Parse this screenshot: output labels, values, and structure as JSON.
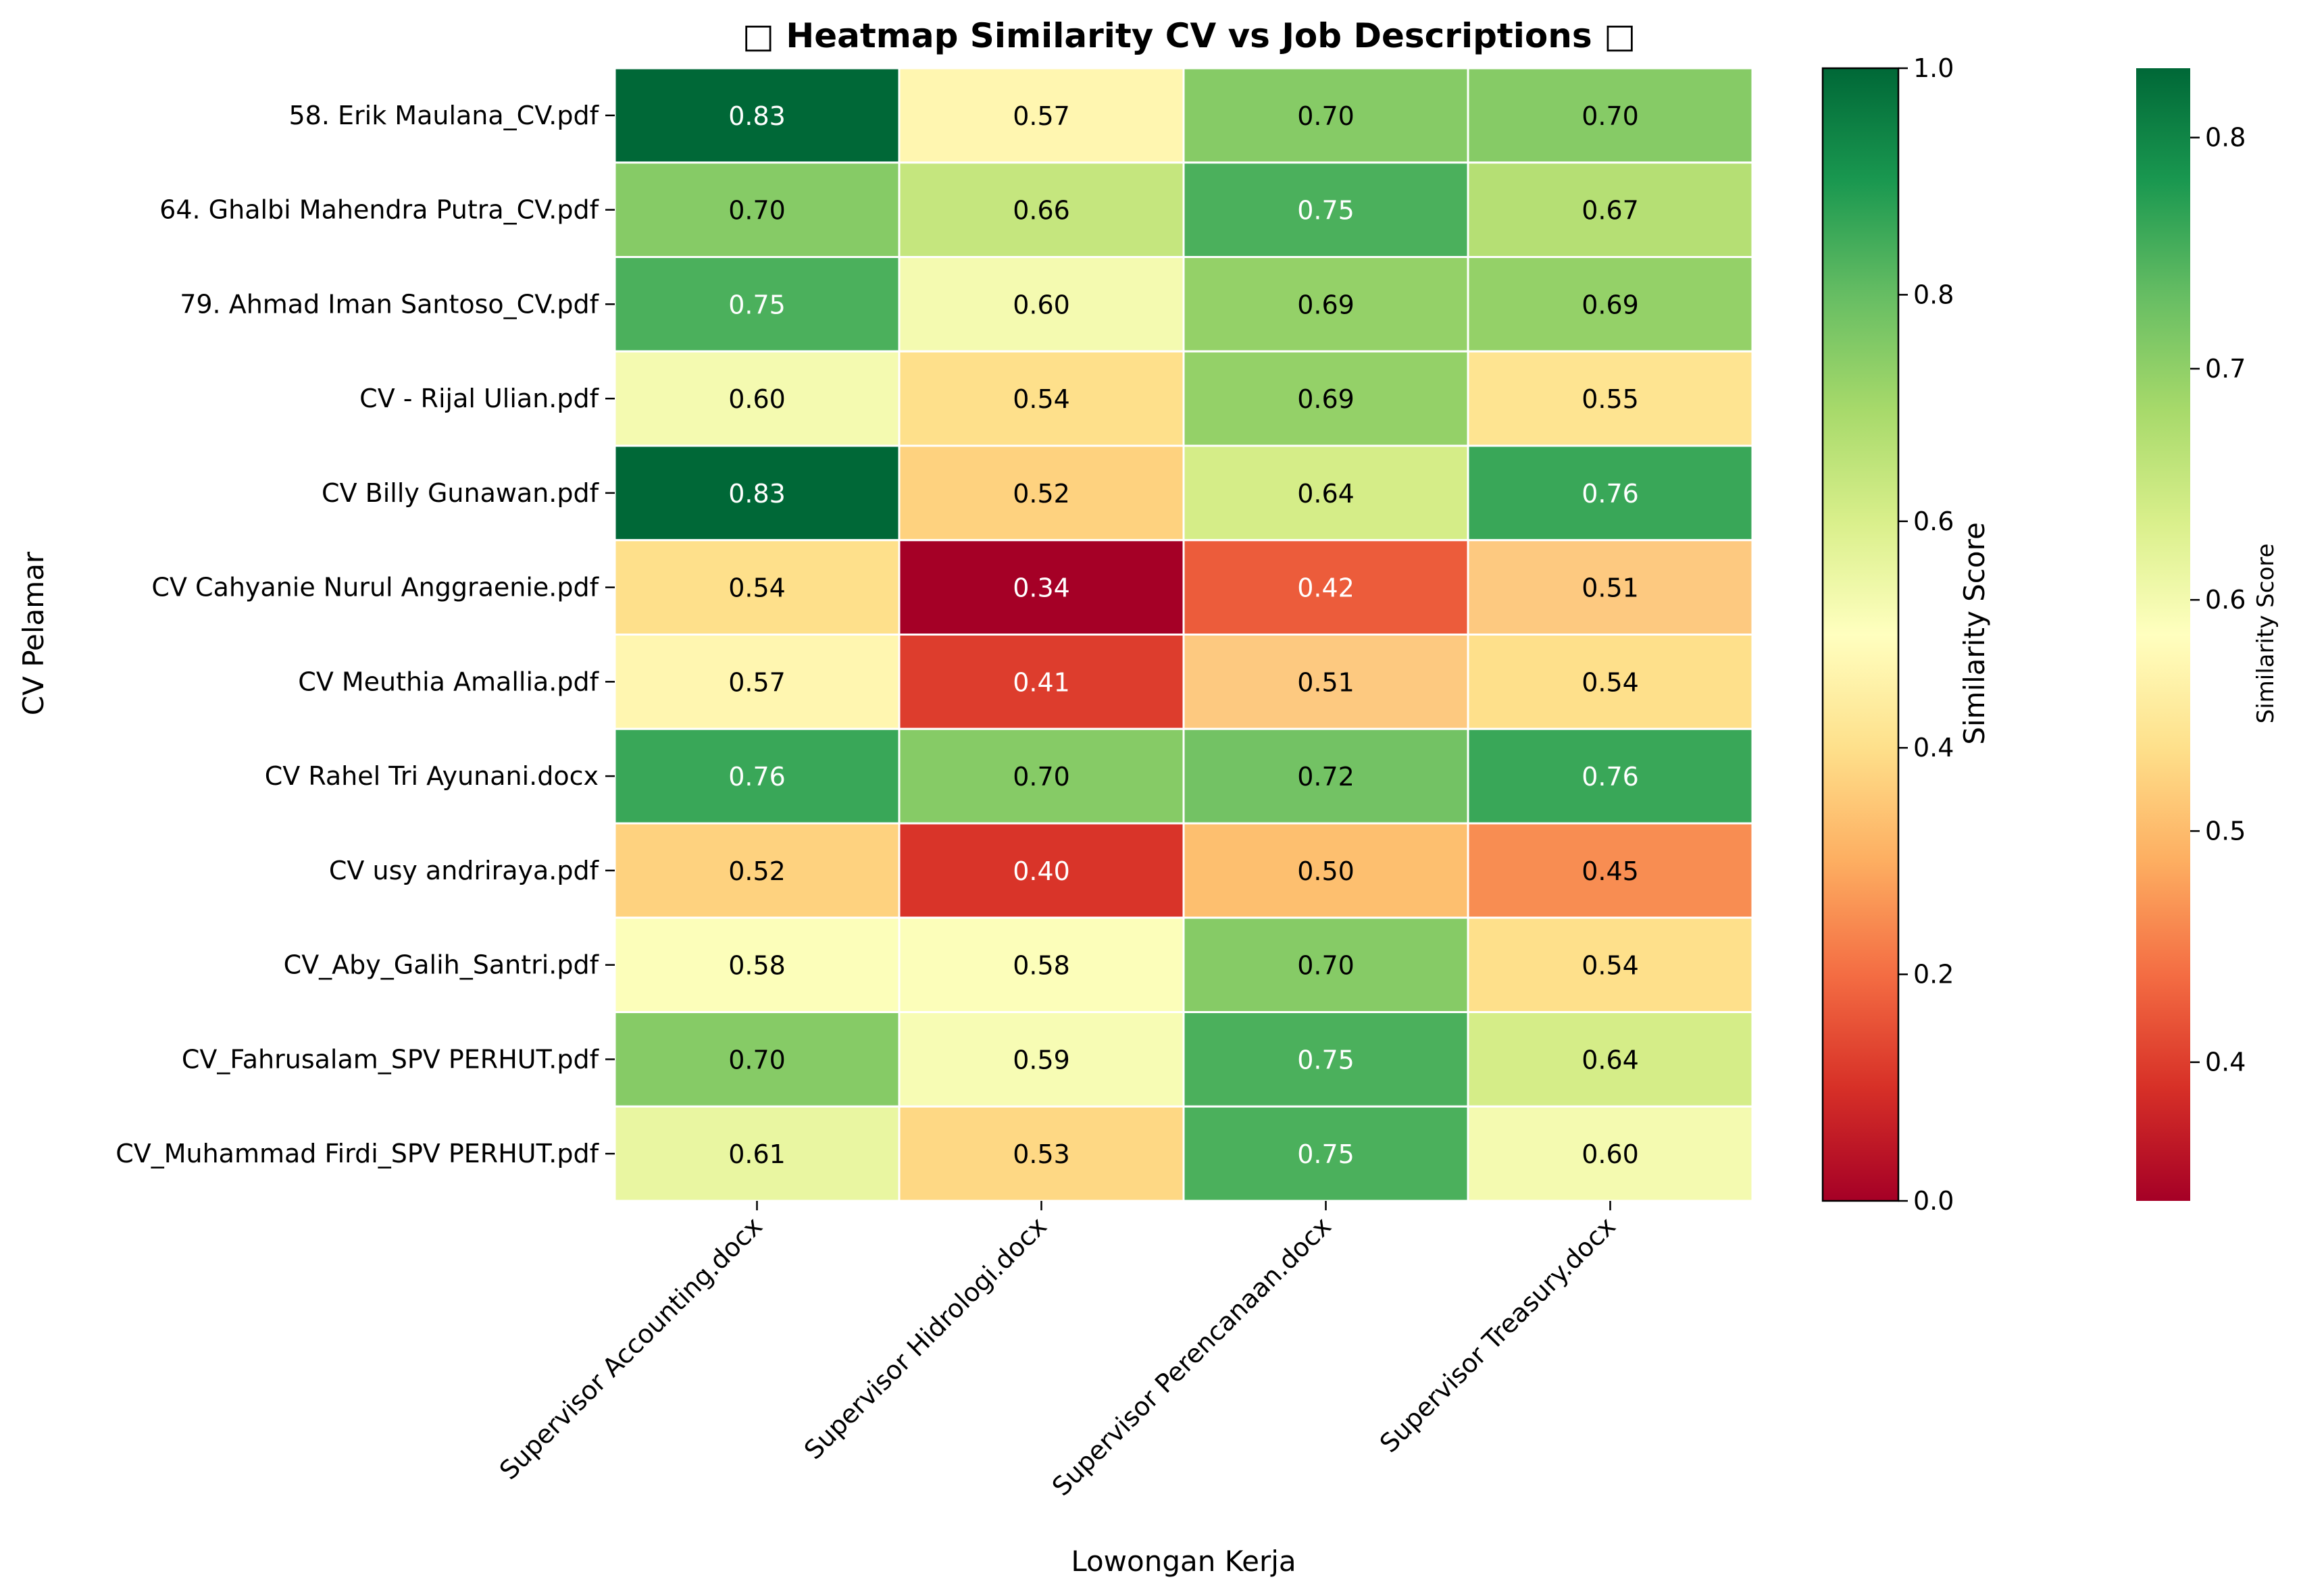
{
  "chart_data": {
    "type": "heatmap",
    "title": "□ Heatmap Similarity CV vs Job Descriptions □",
    "xlabel": "Lowongan Kerja",
    "ylabel": "CV Pelamar",
    "columns": [
      "Supervisor Accounting.docx",
      "Supervisor Hidrologi.docx",
      "Supervisor Perencanaan.docx",
      "Supervisor Treasury.docx"
    ],
    "rows": [
      "58. Erik Maulana_CV.pdf",
      "64. Ghalbi Mahendra Putra_CV.pdf",
      "79. Ahmad Iman Santoso_CV.pdf",
      "CV - Rijal Ulian.pdf",
      "CV Billy Gunawan.pdf",
      "CV Cahyanie Nurul Anggraenie.pdf",
      "CV Meuthia Amallia.pdf",
      "CV Rahel Tri Ayunani.docx",
      "CV usy andriraya.pdf",
      "CV_Aby_Galih_Santri.pdf",
      "CV_Fahrusalam_SPV PERHUT.pdf",
      "CV_Muhammad Firdi_SPV PERHUT.pdf"
    ],
    "values": [
      [
        0.83,
        0.57,
        0.7,
        0.7
      ],
      [
        0.7,
        0.66,
        0.75,
        0.67
      ],
      [
        0.75,
        0.6,
        0.69,
        0.69
      ],
      [
        0.6,
        0.54,
        0.69,
        0.55
      ],
      [
        0.83,
        0.52,
        0.64,
        0.76
      ],
      [
        0.54,
        0.34,
        0.42,
        0.51
      ],
      [
        0.57,
        0.41,
        0.51,
        0.54
      ],
      [
        0.76,
        0.7,
        0.72,
        0.76
      ],
      [
        0.52,
        0.4,
        0.5,
        0.45
      ],
      [
        0.58,
        0.58,
        0.7,
        0.54
      ],
      [
        0.7,
        0.59,
        0.75,
        0.64
      ],
      [
        0.61,
        0.53,
        0.75,
        0.6
      ]
    ],
    "colormap": "RdYlGn",
    "cell_colors": [
      [
        "#006837",
        "#fff6b0",
        "#86cb66",
        "#86cb66"
      ],
      [
        "#86cb66",
        "#c5e67e",
        "#4bb05c",
        "#b5df74"
      ],
      [
        "#4bb05c",
        "#f4fab0",
        "#94d168",
        "#94d168"
      ],
      [
        "#f4fab0",
        "#fee08b",
        "#94d168",
        "#fee491"
      ],
      [
        "#006837",
        "#fed27f",
        "#d5ed88",
        "#39a758"
      ],
      [
        "#fee08b",
        "#a50026",
        "#ec5c3b",
        "#fdc980"
      ],
      [
        "#fff6b0",
        "#dd3d2d",
        "#fdc980",
        "#fee08b"
      ],
      [
        "#39a758",
        "#86cb66",
        "#73c264",
        "#39a758"
      ],
      [
        "#fed27f",
        "#d93429",
        "#fdbf6f",
        "#f88d52"
      ],
      [
        "#fcfeba",
        "#fcfeba",
        "#86cb66",
        "#fee08b"
      ],
      [
        "#86cb66",
        "#f7fcb4",
        "#4bb05c",
        "#d5ed88"
      ],
      [
        "#e9f6a1",
        "#fed884",
        "#4bb05c",
        "#f4fab0"
      ]
    ],
    "value_labels": [
      [
        "0.83",
        "0.57",
        "0.70",
        "0.70"
      ],
      [
        "0.70",
        "0.66",
        "0.75",
        "0.67"
      ],
      [
        "0.75",
        "0.60",
        "0.69",
        "0.69"
      ],
      [
        "0.60",
        "0.54",
        "0.69",
        "0.55"
      ],
      [
        "0.83",
        "0.52",
        "0.64",
        "0.76"
      ],
      [
        "0.54",
        "0.34",
        "0.42",
        "0.51"
      ],
      [
        "0.57",
        "0.41",
        "0.51",
        "0.54"
      ],
      [
        "0.76",
        "0.70",
        "0.72",
        "0.76"
      ],
      [
        "0.52",
        "0.40",
        "0.50",
        "0.45"
      ],
      [
        "0.58",
        "0.58",
        "0.70",
        "0.54"
      ],
      [
        "0.70",
        "0.59",
        "0.75",
        "0.64"
      ],
      [
        "0.61",
        "0.53",
        "0.75",
        "0.60"
      ]
    ],
    "colorbars": [
      {
        "label": "Similarity Score",
        "range": [
          0.0,
          1.0
        ],
        "tick_values": [
          0.0,
          0.2,
          0.4,
          0.6,
          0.8,
          1.0
        ],
        "tick_labels": [
          "0.0",
          "0.2",
          "0.4",
          "0.6",
          "0.8",
          "1.0"
        ]
      },
      {
        "label": "Similarity Score",
        "range": [
          0.34,
          0.83
        ],
        "tick_values": [
          0.4,
          0.5,
          0.6,
          0.7,
          0.8
        ],
        "tick_labels": [
          "0.4",
          "0.5",
          "0.6",
          "0.7",
          "0.8"
        ]
      }
    ],
    "gradient_stops": [
      "#a50026",
      "#d73027",
      "#f46d43",
      "#fdae61",
      "#fee08b",
      "#ffffbf",
      "#d9ef8b",
      "#a6d96a",
      "#66bd63",
      "#1a9850",
      "#006837"
    ]
  }
}
